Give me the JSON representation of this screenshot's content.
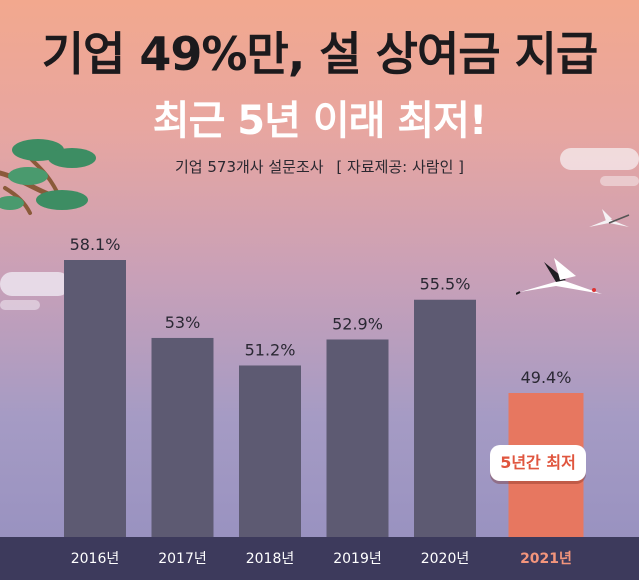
{
  "header": {
    "title_line1": "기업 49%만, 설 상여금 지급",
    "title_line2": "최근 5년 이래 최저!",
    "subtitle": "기업 573개사 설문조사",
    "source": "[ 자료제공: 사람인 ]"
  },
  "badge": {
    "text": "5년간 최저"
  },
  "colors": {
    "bar": "#5d5a72",
    "highlight_bar": "#e77760",
    "axis_band": "#3d3a5c",
    "highlight_label": "#f3957c"
  },
  "chart_data": {
    "type": "bar",
    "categories": [
      "2016년",
      "2017년",
      "2018년",
      "2019년",
      "2020년",
      "2021년"
    ],
    "values": [
      58.1,
      53,
      51.2,
      52.9,
      55.5,
      49.4
    ],
    "value_labels": [
      "58.1%",
      "53%",
      "51.2%",
      "52.9%",
      "55.5%",
      "49.4%"
    ],
    "highlight_index": 5,
    "grid": false
  }
}
